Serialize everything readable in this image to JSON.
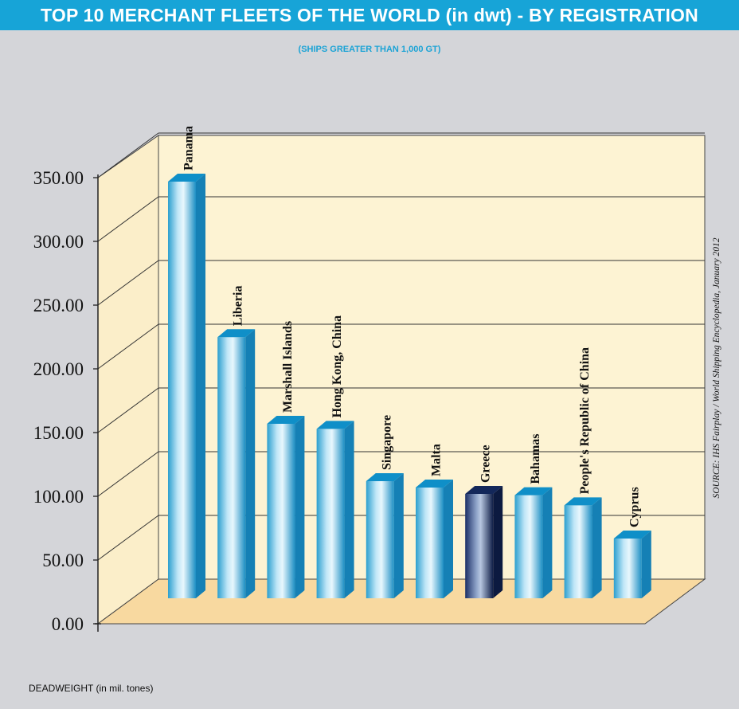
{
  "header": {
    "title": "TOP 10 MERCHANT FLEETS OF THE WORLD (in dwt) - BY REGISTRATION",
    "subtitle": "(SHIPS GREATER THAN 1,000 GT)"
  },
  "footer": {
    "xlabel": "DEADWEIGHT (in mil. tones)",
    "source": "SOURCE: IHS Fairplay / World Shipping Encyclopedia, January 2012"
  },
  "colors": {
    "title_bar": "#17a4d7",
    "panel": "#fdf3d3",
    "floor": "#f8d9a0",
    "bar_main": "#23a2d4",
    "bar_highlight": "#17285a"
  },
  "chart_data": {
    "type": "bar",
    "categories": [
      "Panama",
      "Liberia",
      "Marshall Islands",
      "Hong Kong, China",
      "Singapore",
      "Malta",
      "Greece",
      "Bahamas",
      "People's Republic of China",
      "Cyprus"
    ],
    "values": [
      330,
      208,
      140,
      136,
      95,
      90,
      85,
      84,
      76,
      50
    ],
    "highlight": "Greece",
    "ylim": [
      0,
      350
    ],
    "yticks": [
      "0.00",
      "50.00",
      "100.00",
      "150.00",
      "200.00",
      "250.00",
      "300.00",
      "350.00"
    ],
    "grid": true,
    "three_d": true
  }
}
